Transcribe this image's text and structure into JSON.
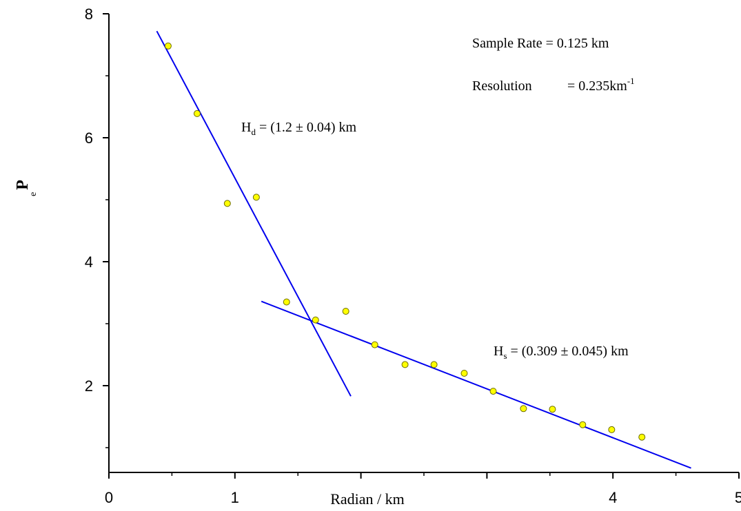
{
  "chart_data": {
    "type": "scatter",
    "title": "",
    "xlabel": "Radian / km",
    "ylabel_main": "P",
    "ylabel_sub": "e",
    "xlim": [
      0,
      5
    ],
    "ylim": [
      0.6,
      8
    ],
    "x_ticks": [
      {
        "value": 0,
        "label": "0"
      },
      {
        "value": 1,
        "label": "1"
      },
      {
        "value": 2,
        "label": ""
      },
      {
        "value": 3,
        "label": ""
      },
      {
        "value": 4,
        "label": "4"
      },
      {
        "value": 5,
        "label": "5"
      }
    ],
    "y_ticks": [
      {
        "value": 2,
        "label": "2"
      },
      {
        "value": 4,
        "label": "4"
      },
      {
        "value": 6,
        "label": "6"
      },
      {
        "value": 8,
        "label": "8"
      }
    ],
    "x_minor_ticks": [
      0.5,
      1.5,
      2.5,
      3.5,
      4.5
    ],
    "y_minor_ticks": [
      1,
      3,
      5,
      7
    ],
    "points": {
      "x": [
        0.47,
        0.7,
        0.94,
        1.17,
        1.41,
        1.64,
        1.88,
        2.11,
        2.35,
        2.58,
        2.82,
        3.05,
        3.29,
        3.52,
        3.76,
        3.99,
        4.23
      ],
      "y": [
        7.48,
        6.39,
        4.94,
        5.04,
        3.35,
        3.06,
        3.2,
        2.66,
        2.34,
        2.34,
        2.2,
        1.91,
        1.63,
        1.62,
        1.37,
        1.29,
        1.17
      ],
      "color": "#ffff00",
      "edge_color": "#6b6b00"
    },
    "fit_lines": [
      {
        "x": [
          0.38,
          1.92
        ],
        "y": [
          7.72,
          1.83
        ],
        "color": "#0000ee"
      },
      {
        "x": [
          1.21,
          4.62
        ],
        "y": [
          3.36,
          0.67
        ],
        "color": "#0000ee"
      }
    ],
    "annotations": {
      "sample_rate": "Sample Rate = 0.125 km",
      "resolution_prefix": "Resolution",
      "resolution_value": "= 0.235km",
      "resolution_sup": "-1",
      "hd_main": "H",
      "hd_sub": "d",
      "hd_value": " = (1.2 ± 0.04) km",
      "hs_main": "H",
      "hs_sub": "s",
      "hs_value": " = (0.309 ± 0.045) km"
    }
  }
}
